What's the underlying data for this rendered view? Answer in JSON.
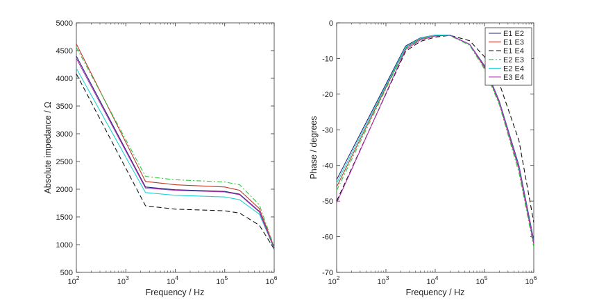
{
  "chart_data": [
    {
      "type": "line",
      "xlabel": "Frequency / Hz",
      "ylabel": "Absolute impedance / Ω",
      "xscale": "log",
      "xlim": [
        100,
        1000000
      ],
      "ylim": [
        500,
        5000
      ],
      "xticks": [
        {
          "base": "10",
          "exp": "2",
          "value": 100
        },
        {
          "base": "10",
          "exp": "3",
          "value": 1000
        },
        {
          "base": "10",
          "exp": "4",
          "value": 10000
        },
        {
          "base": "10",
          "exp": "5",
          "value": 100000
        },
        {
          "base": "10",
          "exp": "6",
          "value": 1000000
        }
      ],
      "yticks": [
        "500",
        "1000",
        "1500",
        "2000",
        "2500",
        "3000",
        "3500",
        "4000",
        "4500",
        "5000"
      ],
      "grid": false,
      "legend": null,
      "series": [
        {
          "name": "E1 E2",
          "color": "#1f2a7a",
          "dash": "solid",
          "x": [
            100,
            2500,
            10000,
            100000,
            200000,
            500000,
            1000000
          ],
          "y": [
            4400,
            2040,
            1990,
            1960,
            1910,
            1600,
            940
          ]
        },
        {
          "name": "E1 E3",
          "color": "#c0392b",
          "dash": "solid",
          "x": [
            100,
            2500,
            10000,
            100000,
            200000,
            500000,
            1000000
          ],
          "y": [
            4620,
            2140,
            2080,
            2040,
            1980,
            1650,
            950
          ]
        },
        {
          "name": "E1 E4",
          "color": "#111111",
          "dash": "dash",
          "x": [
            100,
            2500,
            10000,
            100000,
            200000,
            500000,
            1000000
          ],
          "y": [
            4080,
            1700,
            1640,
            1610,
            1570,
            1350,
            920
          ]
        },
        {
          "name": "E2 E3",
          "color": "#2ecc40",
          "dash": "dashdot",
          "x": [
            100,
            2500,
            10000,
            100000,
            200000,
            500000,
            1000000
          ],
          "y": [
            4560,
            2230,
            2170,
            2130,
            2080,
            1720,
            960
          ]
        },
        {
          "name": "E2 E4",
          "color": "#22d3d3",
          "dash": "solid",
          "x": [
            100,
            2500,
            10000,
            100000,
            200000,
            500000,
            1000000
          ],
          "y": [
            4180,
            1940,
            1890,
            1860,
            1810,
            1550,
            930
          ]
        },
        {
          "name": "E3 E4",
          "color": "#b02ab0",
          "dash": "solid",
          "x": [
            100,
            2500,
            10000,
            100000,
            200000,
            500000,
            1000000
          ],
          "y": [
            4360,
            2020,
            1980,
            1950,
            1900,
            1590,
            935
          ]
        }
      ]
    },
    {
      "type": "line",
      "xlabel": "Frequency / Hz",
      "ylabel": "Phase / degrees",
      "xscale": "log",
      "xlim": [
        100,
        1000000
      ],
      "ylim": [
        -70,
        0
      ],
      "xticks": [
        {
          "base": "10",
          "exp": "2",
          "value": 100
        },
        {
          "base": "10",
          "exp": "3",
          "value": 1000
        },
        {
          "base": "10",
          "exp": "4",
          "value": 10000
        },
        {
          "base": "10",
          "exp": "5",
          "value": 100000
        },
        {
          "base": "10",
          "exp": "6",
          "value": 1000000
        }
      ],
      "yticks": [
        "0",
        "-10",
        "-20",
        "-30",
        "-40",
        "-50",
        "-60",
        "-70"
      ],
      "grid": false,
      "legend": "top-right",
      "series": [
        {
          "name": "E1 E2",
          "color": "#1f2a7a",
          "dash": "solid",
          "x": [
            100,
            2500,
            5000,
            10000,
            20000,
            50000,
            100000,
            200000,
            500000,
            1000000
          ],
          "y": [
            -44,
            -6.5,
            -4.2,
            -3.4,
            -3.4,
            -6,
            -12,
            -22,
            -40,
            -61
          ]
        },
        {
          "name": "E1 E3",
          "color": "#c0392b",
          "dash": "solid",
          "x": [
            100,
            2500,
            5000,
            10000,
            20000,
            50000,
            100000,
            200000,
            500000,
            1000000
          ],
          "y": [
            -46,
            -7,
            -4.5,
            -3.5,
            -3.5,
            -6,
            -12.5,
            -22.5,
            -41,
            -62
          ]
        },
        {
          "name": "E1 E4",
          "color": "#111111",
          "dash": "dash",
          "x": [
            100,
            2500,
            5000,
            10000,
            20000,
            50000,
            100000,
            200000,
            500000,
            1000000
          ],
          "y": [
            -50,
            -8,
            -5.2,
            -4,
            -3.5,
            -5,
            -9.5,
            -17,
            -33,
            -56
          ]
        },
        {
          "name": "E2 E3",
          "color": "#2ecc40",
          "dash": "dashdot",
          "x": [
            100,
            2500,
            5000,
            10000,
            20000,
            50000,
            100000,
            200000,
            500000,
            1000000
          ],
          "y": [
            -47,
            -7.2,
            -4.6,
            -3.6,
            -3.6,
            -6.3,
            -13,
            -23,
            -42,
            -63
          ]
        },
        {
          "name": "E2 E4",
          "color": "#22d3d3",
          "dash": "solid",
          "x": [
            100,
            2500,
            5000,
            10000,
            20000,
            50000,
            100000,
            200000,
            500000,
            1000000
          ],
          "y": [
            -45,
            -6.8,
            -4.3,
            -3.4,
            -3.4,
            -6.1,
            -12.2,
            -22.2,
            -40.5,
            -61.5
          ]
        },
        {
          "name": "E3 E4",
          "color": "#b02ab0",
          "dash": "solid",
          "x": [
            100,
            2500,
            5000,
            10000,
            20000,
            50000,
            100000,
            200000,
            500000,
            1000000
          ],
          "y": [
            -50.5,
            -7.5,
            -4.8,
            -3.7,
            -3.5,
            -6,
            -12.3,
            -22.3,
            -40.8,
            -61.8
          ]
        }
      ]
    }
  ]
}
